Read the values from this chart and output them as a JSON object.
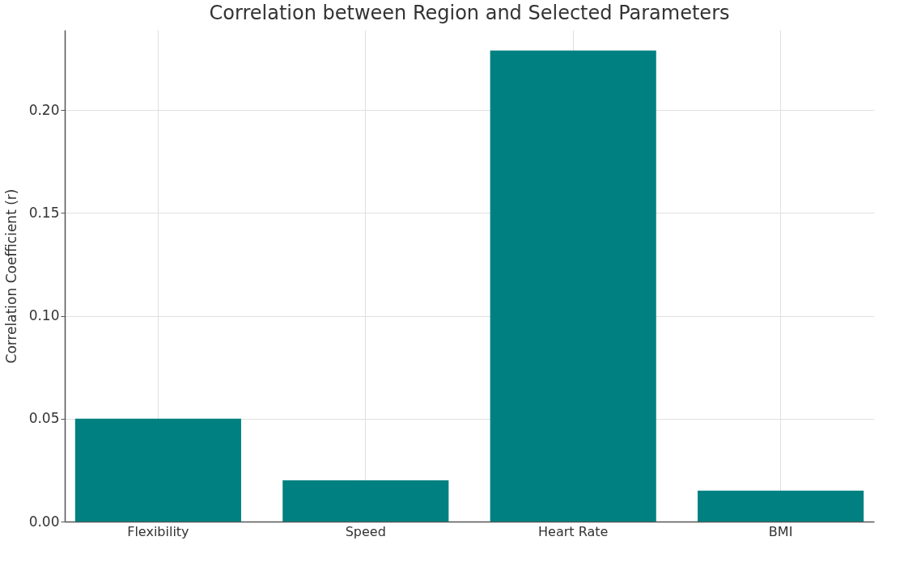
{
  "chart_data": {
    "type": "bar",
    "title": "Correlation between Region and Selected Parameters",
    "ylabel": "Correlation Coefficient (r)",
    "categories": [
      "Flexibility",
      "Speed",
      "Heart Rate",
      "BMI"
    ],
    "values": [
      0.05,
      0.02,
      0.229,
      0.015
    ],
    "color": "#008080",
    "ylim": [
      0,
      0.239
    ],
    "yticks": [
      {
        "value": 0,
        "label": "0.00"
      },
      {
        "value": 0.05,
        "label": "0.05"
      },
      {
        "value": 0.1,
        "label": "0.10"
      },
      {
        "value": 0.15,
        "label": "0.15"
      },
      {
        "value": 0.2,
        "label": "0.20"
      }
    ],
    "grid": true
  }
}
